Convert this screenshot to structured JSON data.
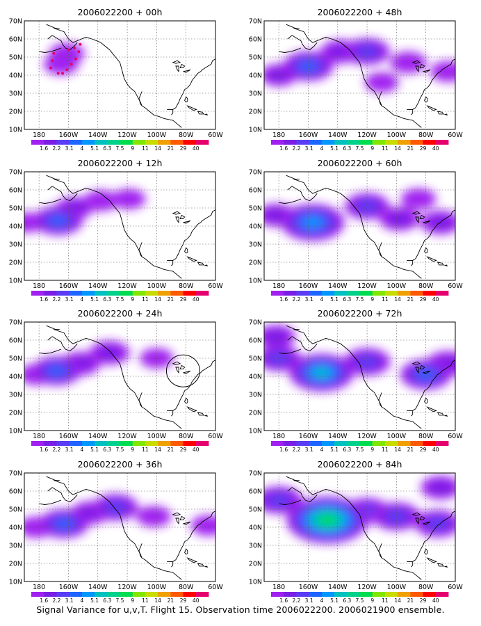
{
  "caption": "Signal Variance for u,v,T. Flight 15. Observation time 2006022200. 2006021900 ensemble.",
  "colorbar": {
    "labels": [
      "1.6",
      "2.2",
      "3.1",
      "4",
      "5.1",
      "6.3",
      "7.5",
      "9",
      "11",
      "14",
      "21",
      "29",
      "40"
    ],
    "colors": [
      "#a020f0",
      "#7a1ee6",
      "#5a3cf5",
      "#1e64ff",
      "#0096ff",
      "#00c0c0",
      "#00d28c",
      "#00dc50",
      "#82e600",
      "#c8dc00",
      "#f0a000",
      "#ff5a00",
      "#ff0000",
      "#e6006e"
    ]
  },
  "chart_data": [
    {
      "type": "heatmap",
      "title": "2006022200 + 00h",
      "xticks": [
        "180",
        "160W",
        "140W",
        "120W",
        "100W",
        "80W",
        "60W"
      ],
      "yticks": [
        "10N",
        "20N",
        "30N",
        "40N",
        "50N",
        "60N",
        "70N"
      ],
      "xlim": [
        170,
        300
      ],
      "ylim": [
        10,
        70
      ],
      "blobs": [
        {
          "lon": 195,
          "lat": 46,
          "value": 1.8
        },
        {
          "lon": 199,
          "lat": 52,
          "value": 1.8
        }
      ],
      "markers": [
        {
          "lon": 188,
          "lat": 44
        },
        {
          "lon": 189,
          "lat": 48
        },
        {
          "lon": 190,
          "lat": 52
        },
        {
          "lon": 193,
          "lat": 41
        },
        {
          "lon": 196,
          "lat": 41
        },
        {
          "lon": 199,
          "lat": 43
        },
        {
          "lon": 202,
          "lat": 46
        },
        {
          "lon": 205,
          "lat": 49
        },
        {
          "lon": 207,
          "lat": 53
        },
        {
          "lon": 208,
          "lat": 57
        },
        {
          "lon": 204,
          "lat": 55
        },
        {
          "lon": 200,
          "lat": 54
        }
      ]
    },
    {
      "type": "heatmap",
      "title": "2006022200 + 12h",
      "xticks": [
        "180",
        "160W",
        "140W",
        "120W",
        "100W",
        "80W",
        "60W"
      ],
      "yticks": [
        "10N",
        "20N",
        "30N",
        "40N",
        "50N",
        "60N",
        "70N"
      ],
      "xlim": [
        170,
        300
      ],
      "ylim": [
        10,
        70
      ],
      "blobs": [
        {
          "lon": 193,
          "lat": 43,
          "value": 4
        },
        {
          "lon": 204,
          "lat": 50,
          "value": 2.2
        },
        {
          "lon": 222,
          "lat": 54,
          "value": 1.8
        },
        {
          "lon": 241,
          "lat": 55,
          "value": 1.6
        },
        {
          "lon": 172,
          "lat": 42,
          "value": 1.6
        }
      ]
    },
    {
      "type": "heatmap",
      "title": "2006022200 + 24h",
      "xticks": [
        "180",
        "160W",
        "140W",
        "120W",
        "100W",
        "80W",
        "60W"
      ],
      "yticks": [
        "10N",
        "20N",
        "30N",
        "40N",
        "50N",
        "60N",
        "70N"
      ],
      "xlim": [
        170,
        300
      ],
      "ylim": [
        10,
        70
      ],
      "blobs": [
        {
          "lon": 192,
          "lat": 43,
          "value": 4
        },
        {
          "lon": 208,
          "lat": 47,
          "value": 2.6
        },
        {
          "lon": 228,
          "lat": 53,
          "value": 2.6
        },
        {
          "lon": 178,
          "lat": 41,
          "value": 1.8
        },
        {
          "lon": 260,
          "lat": 50,
          "value": 1.6
        }
      ],
      "ring": {
        "lon": 278,
        "lat": 43
      }
    },
    {
      "type": "heatmap",
      "title": "2006022200 + 36h",
      "xticks": [
        "180",
        "160W",
        "140W",
        "120W",
        "100W",
        "80W",
        "60W"
      ],
      "yticks": [
        "10N",
        "20N",
        "30N",
        "40N",
        "50N",
        "60N",
        "70N"
      ],
      "xlim": [
        170,
        300
      ],
      "ylim": [
        10,
        70
      ],
      "blobs": [
        {
          "lon": 197,
          "lat": 42,
          "value": 4
        },
        {
          "lon": 232,
          "lat": 51,
          "value": 3.4
        },
        {
          "lon": 215,
          "lat": 48,
          "value": 2.4
        },
        {
          "lon": 178,
          "lat": 40,
          "value": 1.9
        },
        {
          "lon": 258,
          "lat": 46,
          "value": 1.8
        },
        {
          "lon": 295,
          "lat": 41,
          "value": 1.7
        }
      ]
    },
    {
      "type": "heatmap",
      "title": "2006022200 + 48h",
      "xticks": [
        "180",
        "160W",
        "140W",
        "120W",
        "100W",
        "80W",
        "60W"
      ],
      "yticks": [
        "10N",
        "20N",
        "30N",
        "40N",
        "50N",
        "60N",
        "70N"
      ],
      "xlim": [
        170,
        300
      ],
      "ylim": [
        10,
        70
      ],
      "blobs": [
        {
          "lon": 200,
          "lat": 45,
          "value": 4.2
        },
        {
          "lon": 240,
          "lat": 53,
          "value": 3.4
        },
        {
          "lon": 222,
          "lat": 53,
          "value": 2.6
        },
        {
          "lon": 180,
          "lat": 40,
          "value": 2.2
        },
        {
          "lon": 268,
          "lat": 47,
          "value": 2.0
        },
        {
          "lon": 295,
          "lat": 42,
          "value": 1.8
        },
        {
          "lon": 250,
          "lat": 36,
          "value": 1.6
        }
      ]
    },
    {
      "type": "heatmap",
      "title": "2006022200 + 60h",
      "xticks": [
        "180",
        "160W",
        "140W",
        "120W",
        "100W",
        "80W",
        "60W"
      ],
      "yticks": [
        "10N",
        "20N",
        "30N",
        "40N",
        "50N",
        "60N",
        "70N"
      ],
      "xlim": [
        170,
        300
      ],
      "ylim": [
        10,
        70
      ],
      "blobs": [
        {
          "lon": 203,
          "lat": 42,
          "value": 6.2
        },
        {
          "lon": 240,
          "lat": 51,
          "value": 3.3
        },
        {
          "lon": 178,
          "lat": 46,
          "value": 2.3
        },
        {
          "lon": 262,
          "lat": 44,
          "value": 2.6
        },
        {
          "lon": 290,
          "lat": 42,
          "value": 2.6
        },
        {
          "lon": 275,
          "lat": 55,
          "value": 1.8
        }
      ]
    },
    {
      "type": "heatmap",
      "title": "2006022200 + 72h",
      "xticks": [
        "180",
        "160W",
        "140W",
        "120W",
        "100W",
        "80W",
        "60W"
      ],
      "yticks": [
        "10N",
        "20N",
        "30N",
        "40N",
        "50N",
        "60N",
        "70N"
      ],
      "xlim": [
        170,
        300
      ],
      "ylim": [
        10,
        70
      ],
      "blobs": [
        {
          "lon": 209,
          "lat": 42,
          "value": 6.4
        },
        {
          "lon": 180,
          "lat": 50,
          "value": 3.2
        },
        {
          "lon": 240,
          "lat": 48,
          "value": 3.6
        },
        {
          "lon": 280,
          "lat": 41,
          "value": 4.3
        },
        {
          "lon": 295,
          "lat": 47,
          "value": 3.0
        },
        {
          "lon": 178,
          "lat": 62,
          "value": 2.4
        }
      ]
    },
    {
      "type": "heatmap",
      "title": "2006022200 + 84h",
      "xticks": [
        "180",
        "160W",
        "140W",
        "120W",
        "100W",
        "80W",
        "60W"
      ],
      "yticks": [
        "10N",
        "20N",
        "30N",
        "40N",
        "50N",
        "60N",
        "70N"
      ],
      "xlim": [
        170,
        300
      ],
      "ylim": [
        10,
        70
      ],
      "blobs": [
        {
          "lon": 213,
          "lat": 44,
          "value": 9
        },
        {
          "lon": 180,
          "lat": 55,
          "value": 3.6
        },
        {
          "lon": 260,
          "lat": 46,
          "value": 3.7
        },
        {
          "lon": 288,
          "lat": 42,
          "value": 3.5
        },
        {
          "lon": 240,
          "lat": 49,
          "value": 3.2
        },
        {
          "lon": 290,
          "lat": 62,
          "value": 2.5
        }
      ]
    }
  ]
}
